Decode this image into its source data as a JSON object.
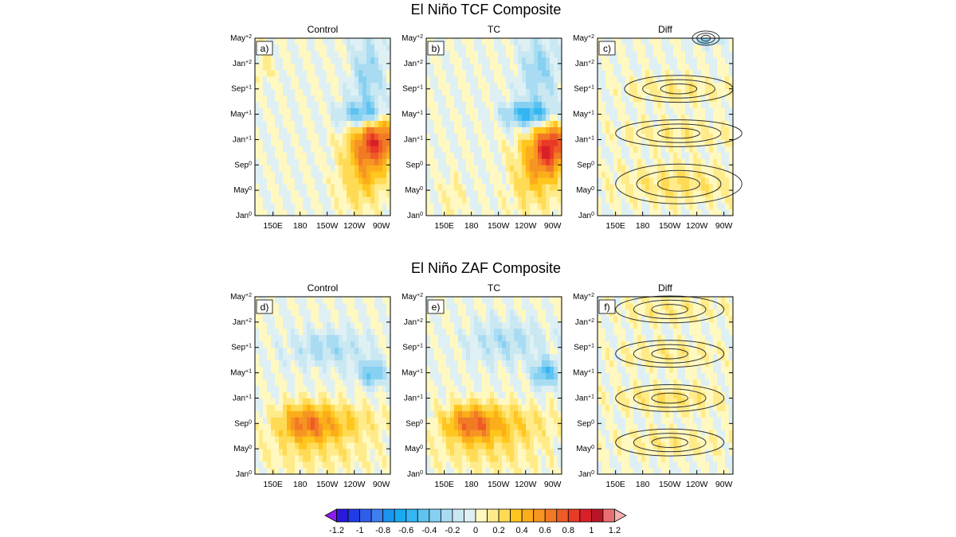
{
  "figure": {
    "rows": [
      {
        "title": "El Niño TCF Composite"
      },
      {
        "title": "El Niño ZAF Composite"
      }
    ],
    "column_titles": [
      "Control",
      "TC",
      "Diff"
    ]
  },
  "chart_data": {
    "type": "heatmap",
    "x_ticks": [
      "150E",
      "180",
      "150W",
      "120W",
      "90W"
    ],
    "x_tick_values_deg_east": [
      150,
      180,
      210,
      240,
      270
    ],
    "xlim_deg_east": [
      130,
      280
    ],
    "y_ticks": [
      {
        "month": "Jan",
        "sup": "0"
      },
      {
        "month": "May",
        "sup": "0"
      },
      {
        "month": "Sep",
        "sup": "0"
      },
      {
        "month": "Jan",
        "sup": "+1"
      },
      {
        "month": "May",
        "sup": "+1"
      },
      {
        "month": "Sep",
        "sup": "+1"
      },
      {
        "month": "Jan",
        "sup": "+2"
      },
      {
        "month": "May",
        "sup": "+2"
      }
    ],
    "y_tick_values_month_index": [
      0,
      4,
      8,
      12,
      16,
      20,
      24,
      28
    ],
    "colorbar": {
      "labels": [
        "-1.2",
        "-1",
        "-0.8",
        "-0.6",
        "-0.4",
        "-0.2",
        "0",
        "0.2",
        "0.4",
        "0.6",
        "0.8",
        "1",
        "1.2"
      ],
      "levels": [
        -1.2,
        -1.1,
        -1.0,
        -0.9,
        -0.8,
        -0.7,
        -0.6,
        -0.5,
        -0.4,
        -0.3,
        -0.2,
        -0.1,
        0,
        0.1,
        0.2,
        0.3,
        0.4,
        0.5,
        0.6,
        0.7,
        0.8,
        0.9,
        1.0,
        1.1,
        1.2
      ],
      "colors": [
        "#8b1cf0",
        "#2a1adb",
        "#1f3ce6",
        "#2f5fe9",
        "#3e7ff0",
        "#1b96f0",
        "#1aaaf2",
        "#33b6f2",
        "#5ec3f0",
        "#86d0f2",
        "#a9dcf2",
        "#c9e8f2",
        "#dff0f4",
        "#fff8c0",
        "#ffeb8a",
        "#ffdb55",
        "#ffc61e",
        "#fcae1a",
        "#f79522",
        "#f27a25",
        "#ef5a26",
        "#e83a26",
        "#d8202a",
        "#b81626",
        "#e87070",
        "#f6b0b0"
      ]
    },
    "panels": [
      {
        "label": "a)",
        "row": 0,
        "column": "Control",
        "anomalies": [
          {
            "lon": 265,
            "month": 12,
            "lon_halfwidth": 25,
            "month_halfwidth": 4,
            "value": 0.75
          },
          {
            "lon": 250,
            "month": 7,
            "lon_halfwidth": 25,
            "month_halfwidth": 6,
            "value": 0.35
          },
          {
            "lon": 250,
            "month": 16,
            "lon_halfwidth": 25,
            "month_halfwidth": 2,
            "value": -0.55
          },
          {
            "lon": 255,
            "month": 22,
            "lon_halfwidth": 18,
            "month_halfwidth": 6,
            "value": -0.3
          },
          {
            "lon": 140,
            "month": 24,
            "lon_halfwidth": 10,
            "month_halfwidth": 3,
            "value": 0.12
          }
        ]
      },
      {
        "label": "b)",
        "row": 0,
        "column": "TC",
        "anomalies": [
          {
            "lon": 268,
            "month": 11,
            "lon_halfwidth": 20,
            "month_halfwidth": 4,
            "value": 0.8
          },
          {
            "lon": 250,
            "month": 7,
            "lon_halfwidth": 25,
            "month_halfwidth": 6,
            "value": 0.35
          },
          {
            "lon": 245,
            "month": 16,
            "lon_halfwidth": 28,
            "month_halfwidth": 2,
            "value": -0.6
          },
          {
            "lon": 255,
            "month": 23,
            "lon_halfwidth": 20,
            "month_halfwidth": 6,
            "value": -0.3
          },
          {
            "lon": 160,
            "month": 3,
            "lon_halfwidth": 12,
            "month_halfwidth": 3,
            "value": 0.12
          }
        ]
      },
      {
        "label": "c)",
        "row": 0,
        "column": "Diff",
        "contours": true,
        "anomalies": [
          {
            "lon": 220,
            "month": 5,
            "lon_halfwidth": 70,
            "month_halfwidth": 3,
            "value": 0.2
          },
          {
            "lon": 220,
            "month": 13,
            "lon_halfwidth": 70,
            "month_halfwidth": 2,
            "value": 0.15
          },
          {
            "lon": 220,
            "month": 20,
            "lon_halfwidth": 60,
            "month_halfwidth": 2,
            "value": 0.15
          },
          {
            "lon": 250,
            "month": 28,
            "lon_halfwidth": 15,
            "month_halfwidth": 1,
            "value": -0.35
          }
        ]
      },
      {
        "label": "d)",
        "row": 1,
        "column": "Control",
        "anomalies": [
          {
            "lon": 185,
            "month": 8,
            "lon_halfwidth": 30,
            "month_halfwidth": 3,
            "value": 0.6
          },
          {
            "lon": 230,
            "month": 8,
            "lon_halfwidth": 40,
            "month_halfwidth": 3,
            "value": 0.25
          },
          {
            "lon": 200,
            "month": 3,
            "lon_halfwidth": 60,
            "month_halfwidth": 3,
            "value": 0.15
          },
          {
            "lon": 260,
            "month": 16,
            "lon_halfwidth": 15,
            "month_halfwidth": 2,
            "value": -0.45
          },
          {
            "lon": 210,
            "month": 20,
            "lon_halfwidth": 40,
            "month_halfwidth": 3,
            "value": -0.25
          }
        ]
      },
      {
        "label": "e)",
        "row": 1,
        "column": "TC",
        "anomalies": [
          {
            "lon": 180,
            "month": 8,
            "lon_halfwidth": 30,
            "month_halfwidth": 3,
            "value": 0.65
          },
          {
            "lon": 230,
            "month": 8,
            "lon_halfwidth": 40,
            "month_halfwidth": 3,
            "value": 0.25
          },
          {
            "lon": 200,
            "month": 3,
            "lon_halfwidth": 60,
            "month_halfwidth": 3,
            "value": 0.15
          },
          {
            "lon": 262,
            "month": 16,
            "lon_halfwidth": 15,
            "month_halfwidth": 2,
            "value": -0.5
          },
          {
            "lon": 220,
            "month": 21,
            "lon_halfwidth": 40,
            "month_halfwidth": 3,
            "value": -0.25
          }
        ]
      },
      {
        "label": "f)",
        "row": 1,
        "column": "Diff",
        "contours": true,
        "anomalies": [
          {
            "lon": 210,
            "month": 5,
            "lon_halfwidth": 60,
            "month_halfwidth": 2,
            "value": 0.15
          },
          {
            "lon": 210,
            "month": 12,
            "lon_halfwidth": 60,
            "month_halfwidth": 2,
            "value": 0.2
          },
          {
            "lon": 210,
            "month": 19,
            "lon_halfwidth": 60,
            "month_halfwidth": 2,
            "value": 0.15
          },
          {
            "lon": 210,
            "month": 26,
            "lon_halfwidth": 60,
            "month_halfwidth": 2,
            "value": 0.15
          }
        ]
      }
    ]
  }
}
